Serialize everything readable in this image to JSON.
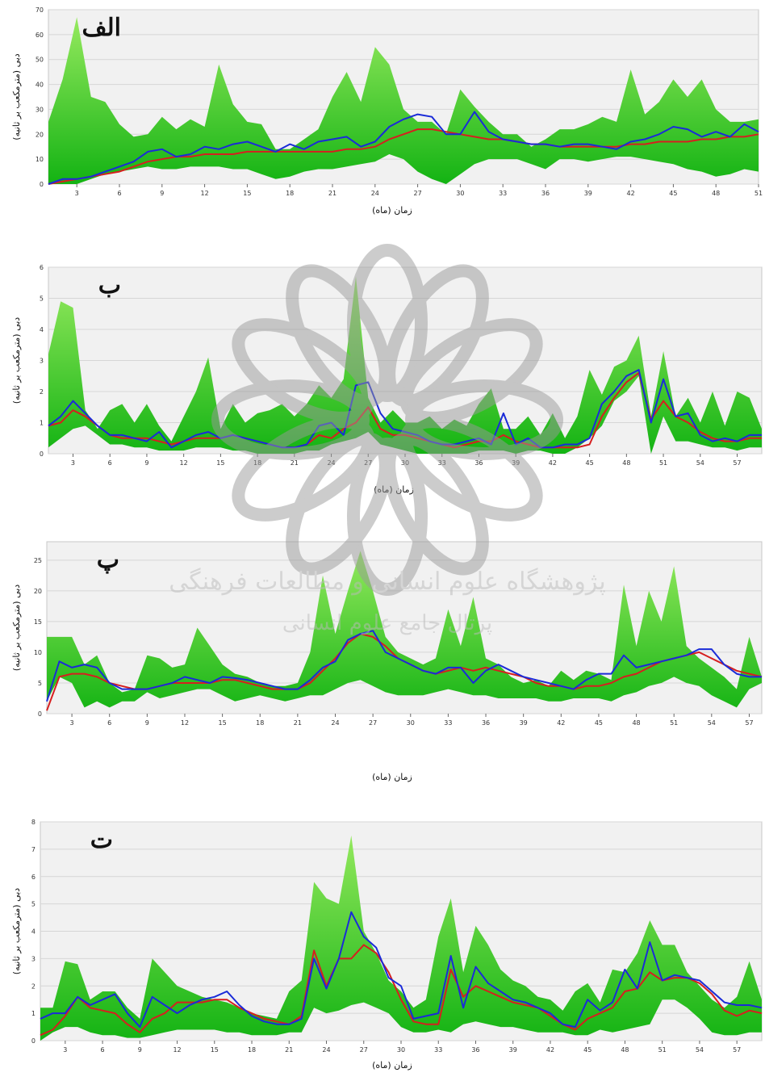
{
  "colors": {
    "band_light": "#9cec62",
    "band_dark": "#13b313",
    "observed": "#1a2bd8",
    "simulated": "#d61f1f",
    "plot_bg": "#f1f1f1",
    "grid": "#d6d6d6"
  },
  "watermark": {
    "line1": "پژوهشگاه علوم انسانی و مطالعات فرهنگی",
    "line2": "پرتال جامع علوم انسانی"
  },
  "chart_data": [
    {
      "type": "area",
      "panel_label": "الف",
      "ylabel": "دبی (مترمکعب بر ثانیه)",
      "xlabel": "زمان (ماه)",
      "xlim": [
        1,
        51
      ],
      "ylim": [
        0,
        70
      ],
      "yticks": [
        0,
        10,
        20,
        30,
        40,
        50,
        60,
        70
      ],
      "xticks": [
        3,
        6,
        9,
        12,
        15,
        18,
        21,
        24,
        27,
        30,
        33,
        36,
        39,
        42,
        45,
        48,
        51
      ],
      "grid": true,
      "x": [
        1,
        2,
        3,
        4,
        5,
        6,
        7,
        8,
        9,
        10,
        11,
        12,
        13,
        14,
        15,
        16,
        17,
        18,
        19,
        20,
        21,
        22,
        23,
        24,
        25,
        26,
        27,
        28,
        29,
        30,
        31,
        32,
        33,
        34,
        35,
        36,
        37,
        38,
        39,
        40,
        41,
        42,
        43,
        44,
        45,
        46,
        47,
        48,
        49,
        50,
        51
      ],
      "band_upper": [
        25,
        42,
        67,
        35,
        33,
        24,
        19,
        20,
        27,
        22,
        26,
        23,
        48,
        32,
        25,
        24,
        14,
        14,
        18,
        22,
        35,
        45,
        33,
        55,
        48,
        30,
        25,
        25,
        20,
        38,
        31,
        25,
        20,
        20,
        15,
        18,
        22,
        22,
        24,
        27,
        25,
        46,
        28,
        33,
        42,
        35,
        42,
        30,
        25,
        25,
        26
      ],
      "band_lower": [
        0,
        0,
        0,
        2,
        4,
        5,
        6,
        7,
        6,
        6,
        7,
        7,
        7,
        6,
        6,
        4,
        2,
        3,
        5,
        6,
        6,
        7,
        8,
        9,
        12,
        10,
        5,
        2,
        0,
        4,
        8,
        10,
        10,
        10,
        8,
        6,
        10,
        10,
        9,
        10,
        11,
        11,
        10,
        9,
        8,
        6,
        5,
        3,
        4,
        6,
        5
      ],
      "series": [
        {
          "role": "observed",
          "values": [
            0,
            2,
            2,
            3,
            5,
            7,
            9,
            13,
            14,
            11,
            12,
            15,
            14,
            16,
            17,
            15,
            13,
            16,
            14,
            17,
            18,
            19,
            15,
            17,
            23,
            26,
            28,
            27,
            20,
            20,
            29,
            21,
            18,
            17,
            16,
            16,
            15,
            16,
            16,
            15,
            14,
            17,
            18,
            20,
            23,
            22,
            19,
            21,
            19,
            24,
            21
          ]
        },
        {
          "role": "simulated",
          "values": [
            0,
            1,
            2,
            3,
            4,
            5,
            7,
            9,
            10,
            11,
            11,
            12,
            12,
            12,
            13,
            13,
            13,
            13,
            13,
            13,
            13,
            14,
            14,
            15,
            18,
            20,
            22,
            22,
            21,
            20,
            19,
            18,
            18,
            17,
            16,
            16,
            15,
            15,
            15,
            15,
            15,
            16,
            16,
            17,
            17,
            17,
            18,
            18,
            19,
            19,
            20
          ]
        }
      ]
    },
    {
      "type": "area",
      "panel_label": "ب",
      "ylabel": "دبی (مترمکعب بر ثانیه)",
      "xlabel": "زمان (ماه)",
      "xlim": [
        1,
        59
      ],
      "ylim": [
        0,
        6
      ],
      "yticks": [
        0,
        1,
        2,
        3,
        4,
        5,
        6
      ],
      "xticks": [
        3,
        6,
        9,
        12,
        15,
        18,
        21,
        24,
        27,
        30,
        33,
        36,
        39,
        42,
        45,
        48,
        51,
        54,
        57
      ],
      "grid": true,
      "x": [
        1,
        2,
        3,
        4,
        5,
        6,
        7,
        8,
        9,
        10,
        11,
        12,
        13,
        14,
        15,
        16,
        17,
        18,
        19,
        20,
        21,
        22,
        23,
        24,
        25,
        26,
        27,
        28,
        29,
        30,
        31,
        32,
        33,
        34,
        35,
        36,
        37,
        38,
        39,
        40,
        41,
        42,
        43,
        44,
        45,
        46,
        47,
        48,
        49,
        50,
        51,
        52,
        53,
        54,
        55,
        56,
        57,
        58,
        59
      ],
      "band_upper": [
        3.2,
        4.9,
        4.7,
        1.4,
        0.8,
        1.4,
        1.6,
        1.0,
        1.6,
        0.9,
        0.4,
        1.2,
        2.0,
        3.1,
        0.8,
        1.6,
        1.0,
        1.3,
        1.4,
        1.6,
        1.2,
        1.6,
        2.2,
        1.8,
        2.4,
        5.7,
        1.8,
        1.0,
        1.4,
        1.0,
        1.0,
        1.2,
        0.8,
        1.1,
        0.9,
        1.6,
        2.1,
        0.8,
        0.8,
        1.2,
        0.6,
        1.3,
        0.5,
        1.2,
        2.7,
        1.9,
        2.8,
        3.0,
        3.8,
        1.2,
        3.3,
        1.2,
        1.8,
        1.0,
        2.0,
        0.9,
        2.0,
        1.8,
        0.8
      ],
      "band_lower": [
        0.2,
        0.5,
        0.8,
        0.9,
        0.6,
        0.3,
        0.3,
        0.2,
        0.2,
        0.1,
        0.1,
        0.1,
        0.2,
        0.2,
        0.2,
        0.1,
        0.1,
        0.0,
        0.0,
        0.0,
        0.0,
        0.1,
        0.1,
        0.3,
        0.4,
        0.5,
        0.7,
        0.3,
        0.2,
        0.1,
        0.0,
        0.0,
        0.0,
        0.0,
        0.0,
        0.1,
        0.1,
        0.1,
        0.0,
        0.1,
        0.1,
        0.0,
        0.0,
        0.2,
        0.5,
        0.9,
        1.7,
        2.0,
        2.5,
        0.0,
        1.2,
        0.4,
        0.4,
        0.3,
        0.2,
        0.2,
        0.1,
        0.2,
        0.2
      ],
      "series": [
        {
          "role": "observed",
          "values": [
            0.9,
            1.2,
            1.7,
            1.3,
            0.9,
            0.6,
            0.6,
            0.5,
            0.4,
            0.7,
            0.2,
            0.4,
            0.6,
            0.7,
            0.5,
            0.6,
            0.5,
            0.4,
            0.3,
            0.2,
            0.2,
            0.3,
            0.9,
            1.0,
            0.6,
            2.2,
            2.3,
            1.3,
            0.8,
            0.7,
            0.6,
            0.4,
            0.3,
            0.3,
            0.4,
            0.5,
            0.3,
            1.3,
            0.3,
            0.5,
            0.2,
            0.2,
            0.3,
            0.3,
            0.5,
            1.6,
            2.0,
            2.5,
            2.7,
            1.0,
            2.4,
            1.2,
            1.3,
            0.6,
            0.4,
            0.5,
            0.4,
            0.6,
            0.6
          ]
        },
        {
          "role": "simulated",
          "values": [
            0.9,
            1.0,
            1.4,
            1.2,
            0.9,
            0.6,
            0.5,
            0.5,
            0.5,
            0.4,
            0.3,
            0.4,
            0.5,
            0.5,
            0.5,
            0.6,
            0.5,
            0.4,
            0.3,
            0.2,
            0.2,
            0.3,
            0.6,
            0.5,
            0.8,
            1.0,
            1.5,
            0.8,
            0.6,
            0.6,
            0.5,
            0.4,
            0.3,
            0.2,
            0.3,
            0.4,
            0.4,
            0.6,
            0.4,
            0.3,
            0.2,
            0.2,
            0.2,
            0.2,
            0.3,
            1.2,
            1.8,
            2.3,
            2.6,
            1.1,
            1.7,
            1.2,
            1.0,
            0.7,
            0.5,
            0.4,
            0.4,
            0.5,
            0.5
          ]
        }
      ]
    },
    {
      "type": "area",
      "panel_label": "پ",
      "ylabel": "دبی (مترمکعب بر ثانیه)",
      "xlabel": "زمان (ماه)",
      "xlim": [
        1,
        58
      ],
      "ylim": [
        0,
        28
      ],
      "yticks": [
        0,
        5,
        10,
        15,
        20,
        25
      ],
      "xticks": [
        3,
        6,
        9,
        12,
        15,
        18,
        21,
        24,
        27,
        30,
        33,
        36,
        39,
        42,
        45,
        48,
        51,
        54,
        57
      ],
      "grid": true,
      "x": [
        1,
        2,
        3,
        4,
        5,
        6,
        7,
        8,
        9,
        10,
        11,
        12,
        13,
        14,
        15,
        16,
        17,
        18,
        19,
        20,
        21,
        22,
        23,
        24,
        25,
        26,
        27,
        28,
        29,
        30,
        31,
        32,
        33,
        34,
        35,
        36,
        37,
        38,
        39,
        40,
        41,
        42,
        43,
        44,
        45,
        46,
        47,
        48,
        49,
        50,
        51,
        52,
        53,
        54,
        55,
        56,
        57,
        58
      ],
      "band_upper": [
        12.5,
        12.5,
        12.5,
        8.0,
        9.5,
        5.0,
        3.5,
        4.0,
        9.5,
        9.0,
        7.5,
        8.0,
        14.0,
        11.0,
        8.0,
        6.5,
        6.0,
        5.0,
        4.5,
        4.5,
        5.0,
        10.0,
        22.5,
        13.0,
        20.0,
        26.5,
        20.0,
        12.5,
        10.0,
        9.0,
        8.0,
        9.0,
        17.0,
        11.0,
        19.0,
        9.0,
        8.0,
        6.0,
        5.0,
        5.5,
        4.5,
        7.0,
        5.5,
        7.0,
        6.5,
        5.5,
        21.0,
        11.0,
        20.0,
        15.0,
        24.0,
        11.0,
        9.0,
        7.5,
        6.0,
        4.0,
        12.5,
        6.0
      ],
      "band_lower": [
        2.0,
        6.0,
        5.0,
        1.0,
        2.0,
        1.0,
        2.0,
        2.0,
        3.5,
        2.5,
        3.0,
        3.5,
        4.0,
        4.0,
        3.0,
        2.0,
        2.5,
        3.0,
        2.5,
        2.0,
        2.5,
        3.0,
        3.0,
        4.0,
        5.0,
        5.5,
        4.5,
        3.5,
        3.0,
        3.0,
        3.0,
        3.5,
        4.0,
        3.5,
        3.0,
        3.0,
        2.5,
        2.5,
        2.5,
        2.5,
        2.0,
        2.0,
        2.5,
        2.5,
        2.5,
        2.0,
        3.0,
        3.5,
        4.5,
        5.0,
        6.0,
        5.0,
        4.5,
        3.0,
        2.0,
        1.0,
        4.0,
        5.0
      ],
      "series": [
        {
          "role": "observed",
          "values": [
            2.0,
            8.5,
            7.5,
            8.0,
            7.5,
            5.0,
            4.0,
            4.0,
            4.0,
            4.5,
            5.0,
            6.0,
            5.5,
            5.0,
            6.0,
            5.8,
            5.5,
            5.0,
            4.5,
            4.0,
            4.0,
            5.5,
            7.5,
            8.5,
            12.0,
            13.0,
            13.5,
            10.0,
            9.0,
            8.0,
            7.0,
            6.5,
            7.5,
            7.5,
            5.0,
            7.0,
            8.0,
            7.0,
            6.0,
            5.5,
            5.0,
            4.5,
            4.0,
            5.5,
            6.5,
            6.5,
            9.5,
            7.5,
            8.0,
            8.5,
            9.0,
            9.5,
            10.5,
            10.5,
            8.0,
            6.5,
            6.0,
            6.0
          ]
        },
        {
          "role": "simulated",
          "values": [
            0.5,
            6.0,
            6.5,
            6.5,
            6.0,
            5.0,
            4.5,
            4.0,
            4.0,
            4.5,
            5.0,
            5.0,
            5.0,
            5.0,
            5.5,
            5.5,
            5.0,
            4.5,
            4.0,
            4.0,
            4.0,
            5.0,
            7.0,
            9.0,
            11.5,
            13.0,
            12.5,
            11.0,
            9.0,
            8.0,
            7.0,
            6.5,
            7.0,
            7.5,
            7.0,
            7.5,
            7.0,
            6.5,
            6.0,
            5.0,
            4.5,
            4.5,
            4.0,
            4.5,
            4.5,
            5.0,
            6.0,
            6.5,
            7.5,
            8.5,
            9.0,
            9.5,
            10.0,
            9.0,
            8.0,
            7.0,
            6.5,
            6.0
          ]
        }
      ]
    },
    {
      "type": "area",
      "panel_label": "ت",
      "ylabel": "دبی (مترمکعب بر ثانیه)",
      "xlabel": "زمان (ماه)",
      "xlim": [
        1,
        59
      ],
      "ylim": [
        0,
        8
      ],
      "yticks": [
        0,
        1,
        2,
        3,
        4,
        5,
        6,
        7,
        8
      ],
      "xticks": [
        3,
        6,
        9,
        12,
        15,
        18,
        21,
        24,
        27,
        30,
        33,
        36,
        39,
        42,
        45,
        48,
        51,
        54,
        57
      ],
      "grid": true,
      "x": [
        1,
        2,
        3,
        4,
        5,
        6,
        7,
        8,
        9,
        10,
        11,
        12,
        13,
        14,
        15,
        16,
        17,
        18,
        19,
        20,
        21,
        22,
        23,
        24,
        25,
        26,
        27,
        28,
        29,
        30,
        31,
        32,
        33,
        34,
        35,
        36,
        37,
        38,
        39,
        40,
        41,
        42,
        43,
        44,
        45,
        46,
        47,
        48,
        49,
        50,
        51,
        52,
        53,
        54,
        55,
        56,
        57,
        58,
        59
      ],
      "band_upper": [
        1.2,
        1.2,
        2.9,
        2.8,
        1.5,
        1.8,
        1.8,
        1.2,
        0.8,
        3.0,
        2.5,
        2.0,
        1.8,
        1.6,
        1.5,
        1.4,
        1.2,
        1.0,
        0.9,
        0.8,
        1.8,
        2.2,
        5.8,
        5.2,
        5.0,
        7.5,
        4.0,
        3.2,
        2.2,
        1.8,
        1.2,
        1.5,
        3.8,
        5.2,
        2.5,
        4.2,
        3.5,
        2.6,
        2.2,
        2.0,
        1.6,
        1.5,
        1.1,
        1.8,
        2.1,
        1.4,
        2.6,
        2.5,
        3.2,
        4.4,
        3.5,
        3.5,
        2.5,
        2.0,
        1.5,
        1.2,
        1.6,
        2.9,
        1.5
      ],
      "band_lower": [
        0.0,
        0.3,
        0.5,
        0.5,
        0.3,
        0.2,
        0.2,
        0.1,
        0.1,
        0.2,
        0.3,
        0.4,
        0.4,
        0.4,
        0.4,
        0.3,
        0.3,
        0.2,
        0.2,
        0.2,
        0.3,
        0.3,
        1.2,
        1.0,
        1.1,
        1.3,
        1.4,
        1.2,
        1.0,
        0.5,
        0.3,
        0.3,
        0.4,
        0.3,
        0.6,
        0.7,
        0.6,
        0.5,
        0.5,
        0.4,
        0.3,
        0.3,
        0.3,
        0.2,
        0.2,
        0.4,
        0.3,
        0.4,
        0.5,
        0.6,
        1.5,
        1.5,
        1.2,
        0.8,
        0.3,
        0.2,
        0.2,
        0.3,
        0.3
      ],
      "series": [
        {
          "role": "observed",
          "values": [
            0.8,
            1.0,
            1.0,
            1.6,
            1.3,
            1.5,
            1.7,
            1.0,
            0.5,
            1.6,
            1.3,
            1.0,
            1.3,
            1.5,
            1.6,
            1.8,
            1.3,
            0.9,
            0.7,
            0.6,
            0.6,
            0.8,
            3.0,
            1.9,
            3.0,
            4.7,
            3.8,
            3.4,
            2.3,
            2.0,
            0.8,
            0.9,
            1.0,
            3.1,
            1.2,
            2.7,
            2.1,
            1.8,
            1.5,
            1.4,
            1.2,
            1.0,
            0.6,
            0.5,
            1.5,
            1.1,
            1.4,
            2.6,
            1.9,
            3.6,
            2.2,
            2.4,
            2.3,
            2.2,
            1.8,
            1.4,
            1.3,
            1.3,
            1.2
          ]
        },
        {
          "role": "simulated",
          "values": [
            0.2,
            0.4,
            0.9,
            1.6,
            1.2,
            1.1,
            1.0,
            0.6,
            0.3,
            0.8,
            1.0,
            1.4,
            1.4,
            1.4,
            1.5,
            1.5,
            1.2,
            1.0,
            0.8,
            0.7,
            0.6,
            0.9,
            3.3,
            2.0,
            3.0,
            3.0,
            3.5,
            3.2,
            2.5,
            1.5,
            0.7,
            0.6,
            0.6,
            2.6,
            1.6,
            2.0,
            1.8,
            1.6,
            1.4,
            1.3,
            1.2,
            0.9,
            0.6,
            0.4,
            0.8,
            1.0,
            1.2,
            1.8,
            1.9,
            2.5,
            2.2,
            2.3,
            2.3,
            2.1,
            1.7,
            1.1,
            0.9,
            1.1,
            1.0
          ]
        }
      ]
    }
  ]
}
